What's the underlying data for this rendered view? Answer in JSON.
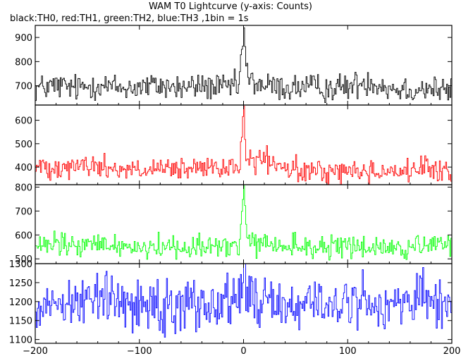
{
  "header": {
    "title": "WAM T0 Lightcurve (y-axis: Counts)",
    "subtitle": "black:TH0, red:TH1, green:TH2, blue:TH3 ,1bin = 1s"
  },
  "chart_data": {
    "type": "line",
    "x_range": [
      -200,
      200
    ],
    "x_ticks": [
      -200,
      -100,
      0,
      100,
      200
    ],
    "grid": false,
    "panels": [
      {
        "color": "#000000",
        "y_range": [
          620,
          950
        ],
        "y_ticks": [
          700,
          800,
          900
        ],
        "baseline": 690,
        "noise": 28,
        "values": [
          {
            "x": -200,
            "y": 690
          },
          {
            "x": -180,
            "y": 700
          },
          {
            "x": -160,
            "y": 690
          },
          {
            "x": -140,
            "y": 705
          },
          {
            "x": -120,
            "y": 690
          },
          {
            "x": -100,
            "y": 695
          },
          {
            "x": -80,
            "y": 700
          },
          {
            "x": -60,
            "y": 690
          },
          {
            "x": -40,
            "y": 700
          },
          {
            "x": -20,
            "y": 690
          },
          {
            "x": -5,
            "y": 700
          },
          {
            "x": 0,
            "y": 940
          },
          {
            "x": 2,
            "y": 770
          },
          {
            "x": 5,
            "y": 720
          },
          {
            "x": 20,
            "y": 700
          },
          {
            "x": 40,
            "y": 690
          },
          {
            "x": 60,
            "y": 695
          },
          {
            "x": 80,
            "y": 690
          },
          {
            "x": 100,
            "y": 695
          },
          {
            "x": 120,
            "y": 720
          },
          {
            "x": 140,
            "y": 690
          },
          {
            "x": 160,
            "y": 685
          },
          {
            "x": 180,
            "y": 690
          },
          {
            "x": 200,
            "y": 670
          }
        ]
      },
      {
        "color": "#ff0000",
        "y_range": [
          325,
          665
        ],
        "y_ticks": [
          400,
          500,
          600
        ],
        "baseline": 390,
        "noise": 25,
        "values": [
          {
            "x": -200,
            "y": 400
          },
          {
            "x": -180,
            "y": 405
          },
          {
            "x": -160,
            "y": 410
          },
          {
            "x": -140,
            "y": 400
          },
          {
            "x": -120,
            "y": 395
          },
          {
            "x": -100,
            "y": 385
          },
          {
            "x": -80,
            "y": 385
          },
          {
            "x": -60,
            "y": 390
          },
          {
            "x": -40,
            "y": 390
          },
          {
            "x": -20,
            "y": 395
          },
          {
            "x": -5,
            "y": 390
          },
          {
            "x": 0,
            "y": 660
          },
          {
            "x": 2,
            "y": 450
          },
          {
            "x": 5,
            "y": 420
          },
          {
            "x": 20,
            "y": 430
          },
          {
            "x": 40,
            "y": 390
          },
          {
            "x": 60,
            "y": 380
          },
          {
            "x": 80,
            "y": 380
          },
          {
            "x": 100,
            "y": 385
          },
          {
            "x": 120,
            "y": 380
          },
          {
            "x": 140,
            "y": 385
          },
          {
            "x": 160,
            "y": 385
          },
          {
            "x": 180,
            "y": 390
          },
          {
            "x": 200,
            "y": 375
          }
        ]
      },
      {
        "color": "#00ff00",
        "y_range": [
          480,
          810
        ],
        "y_ticks": [
          500,
          600,
          700,
          800
        ],
        "baseline": 550,
        "noise": 25,
        "values": [
          {
            "x": -200,
            "y": 545
          },
          {
            "x": -180,
            "y": 560
          },
          {
            "x": -160,
            "y": 550
          },
          {
            "x": -140,
            "y": 560
          },
          {
            "x": -120,
            "y": 555
          },
          {
            "x": -100,
            "y": 550
          },
          {
            "x": -80,
            "y": 550
          },
          {
            "x": -60,
            "y": 550
          },
          {
            "x": -40,
            "y": 555
          },
          {
            "x": -20,
            "y": 550
          },
          {
            "x": -5,
            "y": 550
          },
          {
            "x": 0,
            "y": 805
          },
          {
            "x": 2,
            "y": 600
          },
          {
            "x": 5,
            "y": 560
          },
          {
            "x": 20,
            "y": 560
          },
          {
            "x": 40,
            "y": 550
          },
          {
            "x": 60,
            "y": 550
          },
          {
            "x": 80,
            "y": 550
          },
          {
            "x": 100,
            "y": 545
          },
          {
            "x": 120,
            "y": 550
          },
          {
            "x": 140,
            "y": 545
          },
          {
            "x": 160,
            "y": 545
          },
          {
            "x": 180,
            "y": 550
          },
          {
            "x": 200,
            "y": 560
          }
        ]
      },
      {
        "color": "#0000ff",
        "y_range": [
          1090,
          1300
        ],
        "y_ticks": [
          1100,
          1150,
          1200,
          1250,
          1300
        ],
        "baseline": 1195,
        "noise": 35,
        "values": [
          {
            "x": -200,
            "y": 1190
          },
          {
            "x": -180,
            "y": 1200
          },
          {
            "x": -160,
            "y": 1205
          },
          {
            "x": -140,
            "y": 1210
          },
          {
            "x": -120,
            "y": 1200
          },
          {
            "x": -100,
            "y": 1195
          },
          {
            "x": -80,
            "y": 1195
          },
          {
            "x": -60,
            "y": 1195
          },
          {
            "x": -40,
            "y": 1200
          },
          {
            "x": -20,
            "y": 1195
          },
          {
            "x": -5,
            "y": 1195
          },
          {
            "x": 0,
            "y": 1300
          },
          {
            "x": 2,
            "y": 1230
          },
          {
            "x": 5,
            "y": 1210
          },
          {
            "x": 20,
            "y": 1200
          },
          {
            "x": 40,
            "y": 1195
          },
          {
            "x": 60,
            "y": 1190
          },
          {
            "x": 80,
            "y": 1195
          },
          {
            "x": 100,
            "y": 1190
          },
          {
            "x": 120,
            "y": 1200
          },
          {
            "x": 140,
            "y": 1195
          },
          {
            "x": 160,
            "y": 1200
          },
          {
            "x": 180,
            "y": 1195
          },
          {
            "x": 200,
            "y": 1185
          }
        ]
      }
    ]
  }
}
